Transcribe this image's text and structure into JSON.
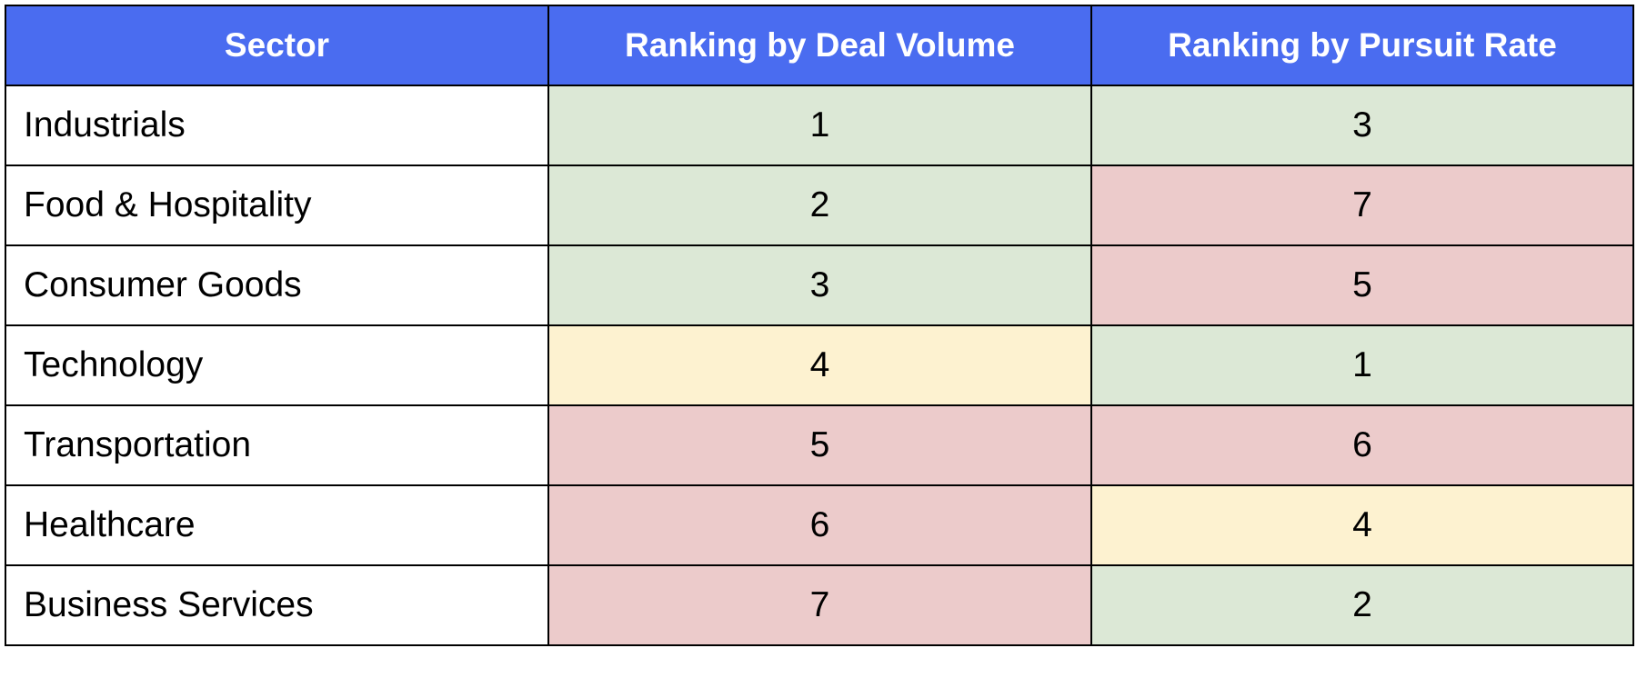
{
  "chart_data": {
    "type": "table",
    "columns": [
      "Sector",
      "Ranking by Deal Volume",
      "Ranking by Pursuit Rate"
    ],
    "rows": [
      {
        "sector": "Industrials",
        "deal_volume": "1",
        "pursuit_rate": "3",
        "deal_volume_level": "green",
        "pursuit_rate_level": "green"
      },
      {
        "sector": "Food & Hospitality",
        "deal_volume": "2",
        "pursuit_rate": "7",
        "deal_volume_level": "green",
        "pursuit_rate_level": "red"
      },
      {
        "sector": "Consumer Goods",
        "deal_volume": "3",
        "pursuit_rate": "5",
        "deal_volume_level": "green",
        "pursuit_rate_level": "red"
      },
      {
        "sector": "Technology",
        "deal_volume": "4",
        "pursuit_rate": "1",
        "deal_volume_level": "yellow",
        "pursuit_rate_level": "green"
      },
      {
        "sector": "Transportation",
        "deal_volume": "5",
        "pursuit_rate": "6",
        "deal_volume_level": "red",
        "pursuit_rate_level": "red"
      },
      {
        "sector": "Healthcare",
        "deal_volume": "6",
        "pursuit_rate": "4",
        "deal_volume_level": "red",
        "pursuit_rate_level": "yellow"
      },
      {
        "sector": "Business Services",
        "deal_volume": "7",
        "pursuit_rate": "2",
        "deal_volume_level": "red",
        "pursuit_rate_level": "green"
      }
    ],
    "colors": {
      "header": "#4a6cf0",
      "header_text": "#ffffff",
      "green": "#dce8d6",
      "yellow": "#fdf2d0",
      "red": "#eccbcb",
      "border": "#000000"
    }
  }
}
